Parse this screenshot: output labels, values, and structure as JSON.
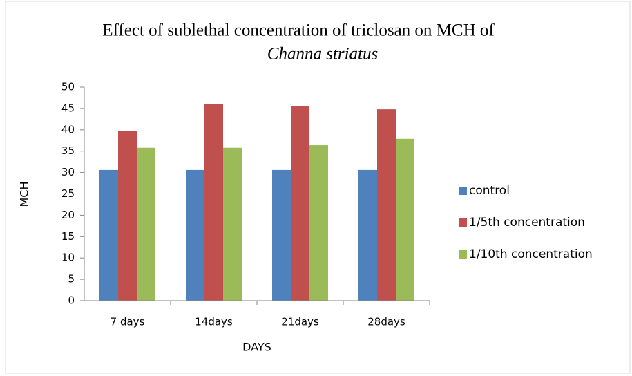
{
  "chart_data": {
    "type": "bar",
    "title": [
      "Effect of sublethal concentration of triclosan on MCH of",
      "Channa striatus"
    ],
    "x_label": "DAYS",
    "y_label": "MCH",
    "categories": [
      "7 days",
      "14days",
      "21days",
      "28days"
    ],
    "series": [
      {
        "name": "control",
        "color": "#4f81bd",
        "values": [
          30.6,
          30.6,
          30.6,
          30.6
        ]
      },
      {
        "name": "1/5th concentration",
        "color": "#c0504d",
        "values": [
          39.8,
          46.1,
          45.6,
          44.8
        ]
      },
      {
        "name": "1/10th concentration",
        "color": "#9bbb59",
        "values": [
          35.8,
          35.8,
          36.4,
          37.9
        ]
      }
    ],
    "ylim": [
      0,
      50
    ],
    "yticks": [
      0,
      5,
      10,
      15,
      20,
      25,
      30,
      35,
      40,
      45,
      50
    ],
    "grid": false,
    "legend": "right"
  }
}
